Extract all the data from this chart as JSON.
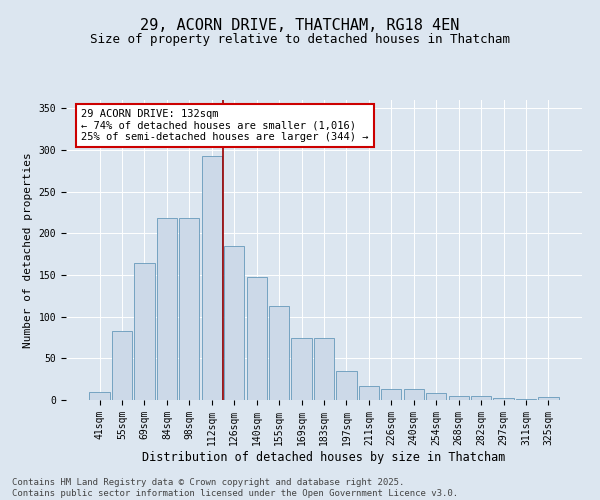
{
  "title": "29, ACORN DRIVE, THATCHAM, RG18 4EN",
  "subtitle": "Size of property relative to detached houses in Thatcham",
  "xlabel": "Distribution of detached houses by size in Thatcham",
  "ylabel": "Number of detached properties",
  "categories": [
    "41sqm",
    "55sqm",
    "69sqm",
    "84sqm",
    "98sqm",
    "112sqm",
    "126sqm",
    "140sqm",
    "155sqm",
    "169sqm",
    "183sqm",
    "197sqm",
    "211sqm",
    "226sqm",
    "240sqm",
    "254sqm",
    "268sqm",
    "282sqm",
    "297sqm",
    "311sqm",
    "325sqm"
  ],
  "values": [
    10,
    83,
    165,
    218,
    218,
    293,
    185,
    148,
    113,
    75,
    75,
    35,
    17,
    13,
    13,
    9,
    5,
    5,
    2,
    1,
    4
  ],
  "bar_color": "#ccd9e8",
  "bar_edge_color": "#6699bb",
  "vline_color": "#990000",
  "vline_pos": 5.5,
  "annotation_text": "29 ACORN DRIVE: 132sqm\n← 74% of detached houses are smaller (1,016)\n25% of semi-detached houses are larger (344) →",
  "annotation_box_facecolor": "#ffffff",
  "annotation_box_edgecolor": "#cc0000",
  "ylim": [
    0,
    360
  ],
  "yticks": [
    0,
    50,
    100,
    150,
    200,
    250,
    300,
    350
  ],
  "bg_color": "#dce6f0",
  "grid_color": "#ffffff",
  "footer": "Contains HM Land Registry data © Crown copyright and database right 2025.\nContains public sector information licensed under the Open Government Licence v3.0.",
  "title_fontsize": 11,
  "subtitle_fontsize": 9,
  "xlabel_fontsize": 8.5,
  "ylabel_fontsize": 8,
  "tick_fontsize": 7,
  "annotation_fontsize": 7.5,
  "footer_fontsize": 6.5
}
